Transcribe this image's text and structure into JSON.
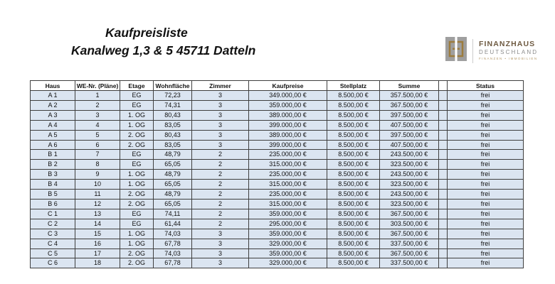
{
  "title": {
    "line1": "Kaufpreisliste",
    "line2": "Kanalweg 1,3 & 5 45711 Datteln"
  },
  "logo": {
    "name": "FINANZHAUS",
    "sub": "DEUTSCHLAND",
    "tagline": "FINANZEN • IMMOBILIEN"
  },
  "colors": {
    "row_bg": "#dbe5f1",
    "table_border": "#3f3f3f",
    "logo_gold": "#9c7c3e",
    "logo_brown": "#6e5a41",
    "logo_gray": "#8c8c8c",
    "logo_tag_gold": "#b59a6b"
  },
  "table": {
    "headers": [
      "Haus",
      "WE-Nr. (Pläne)",
      "Etage",
      "Wohnfläche",
      "Zimmer",
      "Kaufpreise",
      "Stellplatz",
      "Summe",
      "",
      "Status"
    ],
    "rows": [
      [
        "A 1",
        "1",
        "EG",
        "72,23",
        "3",
        "349.000,00 €",
        "8.500,00 €",
        "357.500,00 €",
        "",
        "frei"
      ],
      [
        "A 2",
        "2",
        "EG",
        "74,31",
        "3",
        "359.000,00 €",
        "8.500,00 €",
        "367.500,00 €",
        "",
        "frei"
      ],
      [
        "A 3",
        "3",
        "1. OG",
        "80,43",
        "3",
        "389.000,00 €",
        "8.500,00 €",
        "397.500,00 €",
        "",
        "frei"
      ],
      [
        "A 4",
        "4",
        "1. OG",
        "83,05",
        "3",
        "399.000,00 €",
        "8.500,00 €",
        "407.500,00 €",
        "",
        "frei"
      ],
      [
        "A 5",
        "5",
        "2. OG",
        "80,43",
        "3",
        "389.000,00 €",
        "8.500,00 €",
        "397.500,00 €",
        "",
        "frei"
      ],
      [
        "A 6",
        "6",
        "2. OG",
        "83,05",
        "3",
        "399.000,00 €",
        "8.500,00 €",
        "407.500,00 €",
        "",
        "frei"
      ],
      [
        "B 1",
        "7",
        "EG",
        "48,79",
        "2",
        "235.000,00 €",
        "8.500,00 €",
        "243.500,00 €",
        "",
        "frei"
      ],
      [
        "B 2",
        "8",
        "EG",
        "65,05",
        "2",
        "315.000,00 €",
        "8.500,00 €",
        "323.500,00 €",
        "",
        "frei"
      ],
      [
        "B 3",
        "9",
        "1. OG",
        "48,79",
        "2",
        "235.000,00 €",
        "8.500,00 €",
        "243.500,00 €",
        "",
        "frei"
      ],
      [
        "B 4",
        "10",
        "1. OG",
        "65,05",
        "2",
        "315.000,00 €",
        "8.500,00 €",
        "323.500,00 €",
        "",
        "frei"
      ],
      [
        "B 5",
        "11",
        "2. OG",
        "48,79",
        "2",
        "235.000,00 €",
        "8.500,00 €",
        "243.500,00 €",
        "",
        "frei"
      ],
      [
        "B 6",
        "12",
        "2. OG",
        "65,05",
        "2",
        "315.000,00 €",
        "8.500,00 €",
        "323.500,00 €",
        "",
        "frei"
      ],
      [
        "C 1",
        "13",
        "EG",
        "74,11",
        "2",
        "359.000,00 €",
        "8.500,00 €",
        "367.500,00 €",
        "",
        "frei"
      ],
      [
        "C 2",
        "14",
        "EG",
        "61,44",
        "2",
        "295.000,00 €",
        "8.500,00 €",
        "303.500,00 €",
        "",
        "frei"
      ],
      [
        "C 3",
        "15",
        "1. OG",
        "74,03",
        "3",
        "359.000,00 €",
        "8.500,00 €",
        "367.500,00 €",
        "",
        "frei"
      ],
      [
        "C 4",
        "16",
        "1. OG",
        "67,78",
        "3",
        "329.000,00 €",
        "8.500,00 €",
        "337.500,00 €",
        "",
        "frei"
      ],
      [
        "C 5",
        "17",
        "2. OG",
        "74,03",
        "3",
        "359.000,00 €",
        "8.500,00 €",
        "367.500,00 €",
        "",
        "frei"
      ],
      [
        "C 6",
        "18",
        "2. OG",
        "67,78",
        "3",
        "329.000,00 €",
        "8.500,00 €",
        "337.500,00 €",
        "",
        "frei"
      ]
    ]
  }
}
